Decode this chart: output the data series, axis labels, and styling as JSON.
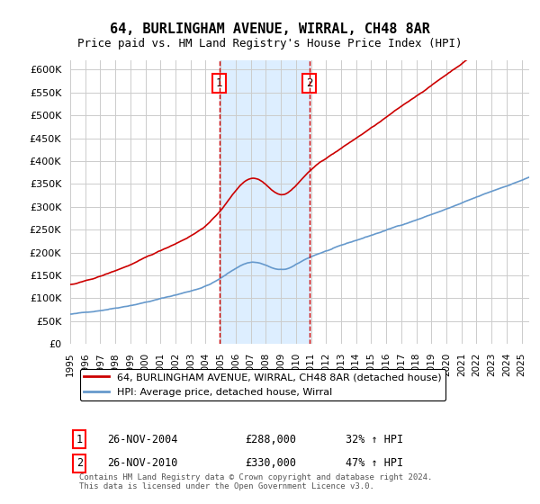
{
  "title": "64, BURLINGHAM AVENUE, WIRRAL, CH48 8AR",
  "subtitle": "Price paid vs. HM Land Registry's House Price Index (HPI)",
  "ylabel_ticks": [
    "£0",
    "£50K",
    "£100K",
    "£150K",
    "£200K",
    "£250K",
    "£300K",
    "£350K",
    "£400K",
    "£450K",
    "£500K",
    "£550K",
    "£600K"
  ],
  "ylim": [
    0,
    620000
  ],
  "xlim_start": 1995.0,
  "xlim_end": 2025.5,
  "sale1_year": 2004.9,
  "sale1_price": 288000,
  "sale1_label": "1",
  "sale2_year": 2010.9,
  "sale2_price": 330000,
  "sale2_label": "2",
  "shaded_region1_start": 2004.9,
  "shaded_region1_end": 2010.9,
  "red_line_color": "#cc0000",
  "blue_line_color": "#6699cc",
  "shade_color": "#ddeeff",
  "marker1_text": "1",
  "marker2_text": "2",
  "legend_red": "64, BURLINGHAM AVENUE, WIRRAL, CH48 8AR (detached house)",
  "legend_blue": "HPI: Average price, detached house, Wirral",
  "table_row1": [
    "1",
    "26-NOV-2004",
    "£288,000",
    "32% ↑ HPI"
  ],
  "table_row2": [
    "2",
    "26-NOV-2010",
    "£330,000",
    "47% ↑ HPI"
  ],
  "footer": "Contains HM Land Registry data © Crown copyright and database right 2024.\nThis data is licensed under the Open Government Licence v3.0.",
  "background_color": "#ffffff",
  "grid_color": "#cccccc"
}
